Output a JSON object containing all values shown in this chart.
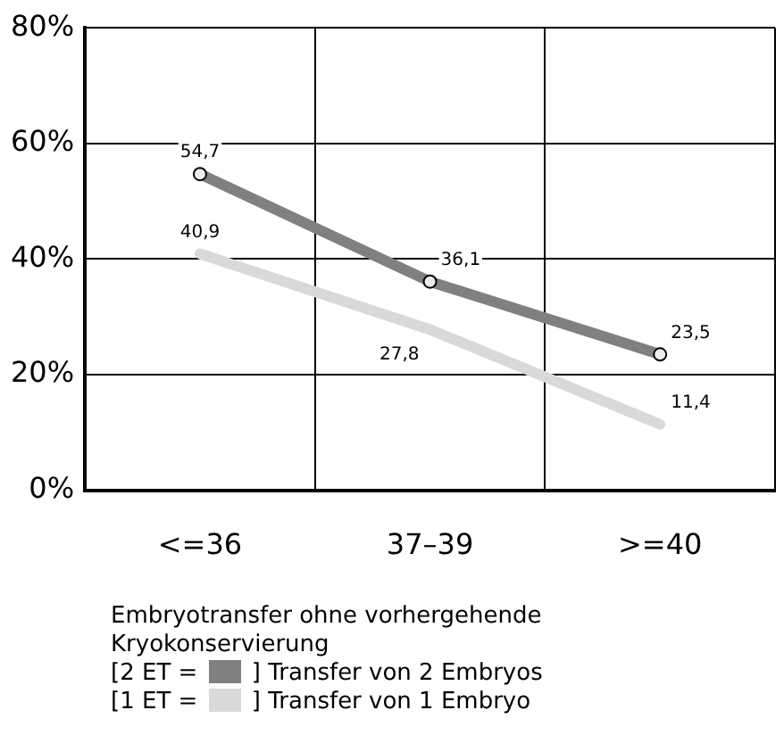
{
  "chart_data": {
    "type": "line",
    "xlabel": "Embryotransfer ohne vorhergehende Kryokonservierung",
    "categories": [
      "<=36",
      "37–39",
      ">=40"
    ],
    "series": [
      {
        "name": "[2 ET =",
        "color": "#808080",
        "values": [
          54.7,
          36.1,
          23.5
        ],
        "value_labels": [
          "54,7",
          "36,1",
          "23,5"
        ],
        "marker": "circle"
      },
      {
        "name": "[1 ET =",
        "color": "#d9d9d9",
        "values": [
          40.9,
          27.8,
          11.4
        ],
        "value_labels": [
          "40,9",
          "27,8",
          "11,4"
        ],
        "marker": "none"
      }
    ],
    "annotations": [
      "] Transfer von 2 Embryos",
      "] Transfer von 1 Embryo"
    ],
    "ylim": [
      0,
      80
    ],
    "yticks": [
      {
        "value": 0,
        "label": "0%"
      },
      {
        "value": 20,
        "label": "20%"
      },
      {
        "value": 40,
        "label": "40%"
      },
      {
        "value": 60,
        "label": "60%"
      },
      {
        "value": 80,
        "label": "80%"
      }
    ],
    "grid": true,
    "legend": "bottom",
    "line_style": "solid"
  }
}
